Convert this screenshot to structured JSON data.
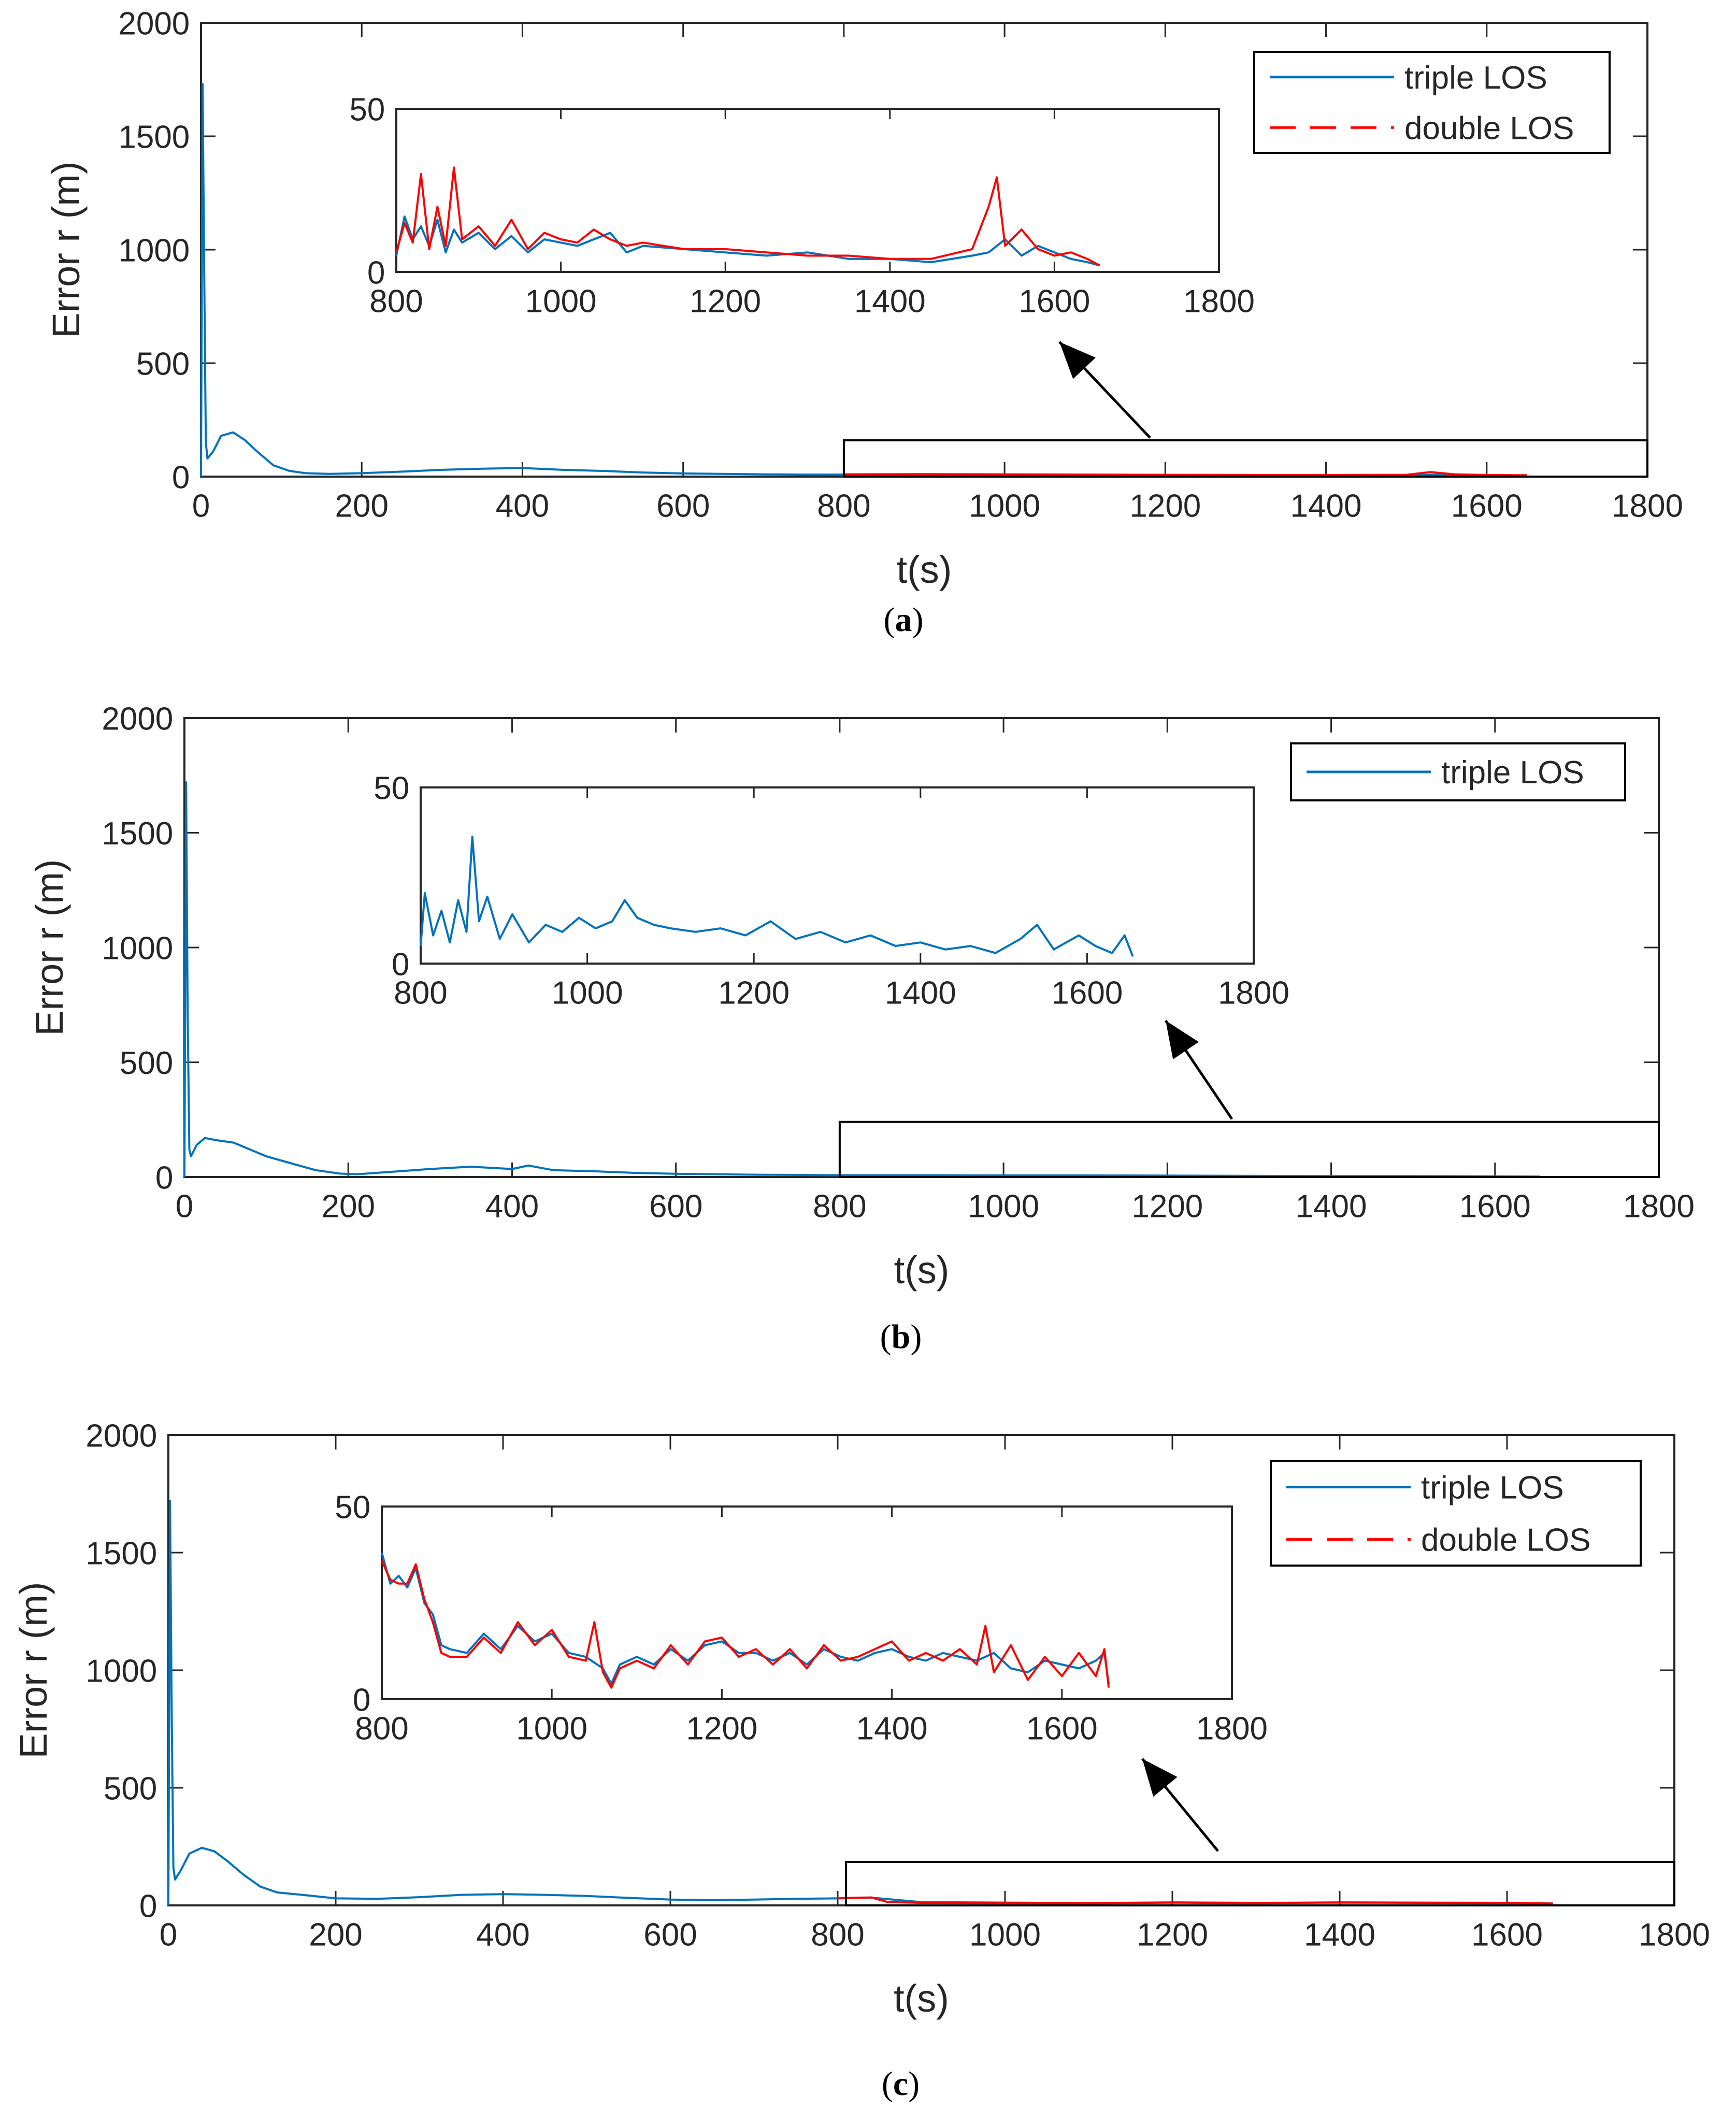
{
  "figure": {
    "colors": {
      "triple": "#0072BD",
      "double": "#FF0000",
      "axis": "#262626",
      "frame": "#000000"
    }
  },
  "chart_data": [
    {
      "panel": "a",
      "caption": "a",
      "type": "line",
      "xlabel": "t(s)",
      "ylabel": "Error r (m)",
      "xlim": [
        0,
        1800
      ],
      "ylim": [
        0,
        2000
      ],
      "xticks": [
        0,
        200,
        400,
        600,
        800,
        1000,
        1200,
        1400,
        1600,
        1800
      ],
      "yticks": [
        0,
        500,
        1000,
        1500,
        2000
      ],
      "legend": [
        "triple LOS",
        "double LOS"
      ],
      "legend_position": "top-right",
      "series": [
        {
          "name": "triple LOS",
          "style": "solid",
          "color": "#0072BD",
          "x": [
            0,
            2,
            4,
            6,
            8,
            15,
            25,
            40,
            55,
            70,
            90,
            110,
            130,
            160,
            200,
            250,
            300,
            350,
            400,
            450,
            500,
            550,
            600,
            650,
            700,
            750,
            800,
            900,
            1000,
            1100,
            1200,
            1300,
            1400,
            1500,
            1550,
            1600,
            1650
          ],
          "y": [
            0,
            1730,
            900,
            150,
            80,
            110,
            180,
            195,
            160,
            110,
            50,
            25,
            15,
            12,
            15,
            22,
            30,
            35,
            38,
            30,
            25,
            18,
            14,
            12,
            10,
            9,
            9,
            9,
            9,
            8,
            7,
            7,
            6,
            7,
            9,
            6,
            5
          ]
        },
        {
          "name": "double LOS",
          "style": "dashed",
          "color": "#FF0000",
          "x": [
            800,
            900,
            1000,
            1100,
            1200,
            1300,
            1400,
            1500,
            1530,
            1560,
            1600,
            1650
          ],
          "y": [
            10,
            11,
            10,
            9,
            8,
            7,
            7,
            8,
            20,
            10,
            7,
            6
          ]
        }
      ],
      "zoom_box": {
        "x": [
          800,
          1800
        ],
        "y": [
          0,
          160
        ]
      },
      "inset": {
        "xlim": [
          800,
          1800
        ],
        "ylim": [
          0,
          50
        ],
        "xticks": [
          800,
          1000,
          1200,
          1400,
          1600,
          1800
        ],
        "yticks": [
          0,
          50
        ],
        "series": [
          {
            "name": "triple LOS",
            "style": "solid",
            "color": "#0072BD",
            "x": [
              800,
              810,
              820,
              830,
              840,
              850,
              860,
              870,
              880,
              900,
              920,
              940,
              960,
              980,
              1000,
              1020,
              1040,
              1060,
              1080,
              1100,
              1150,
              1200,
              1250,
              1300,
              1350,
              1400,
              1450,
              1500,
              1520,
              1540,
              1560,
              1580,
              1600,
              1620,
              1640,
              1655
            ],
            "y": [
              5,
              17,
              10,
              14,
              8,
              16,
              6,
              13,
              9,
              12,
              7,
              11,
              6,
              10,
              9,
              8,
              10,
              12,
              6,
              8,
              7,
              6,
              5,
              6,
              4,
              4,
              3,
              5,
              6,
              10,
              5,
              8,
              6,
              4,
              3,
              2
            ]
          },
          {
            "name": "double LOS",
            "style": "dashed",
            "color": "#FF0000",
            "x": [
              800,
              810,
              820,
              830,
              840,
              850,
              860,
              870,
              880,
              900,
              920,
              940,
              960,
              980,
              1000,
              1020,
              1040,
              1060,
              1080,
              1100,
              1150,
              1200,
              1250,
              1300,
              1350,
              1400,
              1450,
              1500,
              1520,
              1530,
              1540,
              1560,
              1580,
              1600,
              1620,
              1640,
              1655
            ],
            "y": [
              6,
              15,
              9,
              30,
              7,
              20,
              8,
              32,
              10,
              14,
              8,
              16,
              7,
              12,
              10,
              9,
              13,
              10,
              8,
              9,
              7,
              7,
              6,
              5,
              5,
              4,
              4,
              7,
              20,
              29,
              8,
              13,
              7,
              5,
              6,
              4,
              2
            ]
          }
        ]
      }
    },
    {
      "panel": "b",
      "caption": "b",
      "type": "line",
      "xlabel": "t(s)",
      "ylabel": "Error r (m)",
      "xlim": [
        0,
        1800
      ],
      "ylim": [
        0,
        2000
      ],
      "xticks": [
        0,
        200,
        400,
        600,
        800,
        1000,
        1200,
        1400,
        1600,
        1800
      ],
      "yticks": [
        0,
        500,
        1000,
        1500,
        2000
      ],
      "legend": [
        "triple LOS"
      ],
      "legend_position": "top-right",
      "series": [
        {
          "name": "triple LOS",
          "style": "solid",
          "color": "#0072BD",
          "x": [
            0,
            2,
            4,
            6,
            8,
            15,
            25,
            40,
            60,
            80,
            100,
            130,
            160,
            190,
            210,
            250,
            300,
            350,
            400,
            420,
            450,
            500,
            550,
            600,
            650,
            700,
            750,
            800,
            900,
            1000,
            1100,
            1200,
            1300,
            1400,
            1500,
            1600,
            1655
          ],
          "y": [
            0,
            1720,
            700,
            120,
            90,
            140,
            170,
            160,
            150,
            120,
            90,
            60,
            30,
            15,
            12,
            22,
            35,
            45,
            35,
            50,
            30,
            25,
            18,
            14,
            12,
            10,
            9,
            8,
            8,
            7,
            7,
            6,
            5,
            4,
            4,
            3,
            2
          ]
        }
      ],
      "zoom_box": {
        "x": [
          800,
          1800
        ],
        "y": [
          0,
          240
        ]
      },
      "inset": {
        "xlim": [
          800,
          1800
        ],
        "ylim": [
          0,
          50
        ],
        "xticks": [
          800,
          1000,
          1200,
          1400,
          1600,
          1800
        ],
        "yticks": [
          0,
          50
        ],
        "series": [
          {
            "name": "triple LOS",
            "style": "solid",
            "color": "#0072BD",
            "x": [
              800,
              805,
              815,
              825,
              835,
              845,
              855,
              862,
              870,
              880,
              895,
              910,
              930,
              950,
              970,
              990,
              1010,
              1030,
              1045,
              1060,
              1080,
              1100,
              1130,
              1160,
              1190,
              1220,
              1250,
              1280,
              1310,
              1340,
              1370,
              1400,
              1430,
              1460,
              1490,
              1520,
              1540,
              1560,
              1590,
              1610,
              1630,
              1645,
              1655
            ],
            "y": [
              5,
              20,
              8,
              15,
              6,
              18,
              9,
              36,
              12,
              19,
              7,
              14,
              6,
              11,
              9,
              13,
              10,
              12,
              18,
              13,
              11,
              10,
              9,
              10,
              8,
              12,
              7,
              9,
              6,
              8,
              5,
              6,
              4,
              5,
              3,
              7,
              11,
              4,
              8,
              5,
              3,
              8,
              2
            ]
          }
        ]
      }
    },
    {
      "panel": "c",
      "caption": "c",
      "type": "line",
      "xlabel": "t(s)",
      "ylabel": "Error r (m)",
      "xlim": [
        0,
        1800
      ],
      "ylim": [
        0,
        2000
      ],
      "xticks": [
        0,
        200,
        400,
        600,
        800,
        1000,
        1200,
        1400,
        1600,
        1800
      ],
      "yticks": [
        0,
        500,
        1000,
        1500,
        2000
      ],
      "legend": [
        "triple LOS",
        "double LOS"
      ],
      "legend_position": "top-right",
      "series": [
        {
          "name": "triple LOS",
          "style": "solid",
          "color": "#0072BD",
          "x": [
            0,
            2,
            4,
            6,
            8,
            15,
            25,
            40,
            55,
            70,
            90,
            110,
            130,
            160,
            200,
            250,
            300,
            350,
            400,
            450,
            500,
            550,
            600,
            650,
            700,
            750,
            800,
            840,
            900,
            1000,
            1100,
            1200,
            1300,
            1400,
            1500,
            1600,
            1655
          ],
          "y": [
            0,
            1720,
            800,
            160,
            110,
            150,
            220,
            245,
            230,
            190,
            130,
            80,
            55,
            45,
            30,
            28,
            35,
            45,
            48,
            45,
            40,
            32,
            25,
            22,
            25,
            28,
            30,
            33,
            14,
            12,
            10,
            13,
            11,
            12,
            11,
            10,
            8
          ]
        },
        {
          "name": "double LOS",
          "style": "dashed",
          "color": "#FF0000",
          "x": [
            800,
            840,
            860,
            900,
            1000,
            1100,
            1200,
            1300,
            1400,
            1500,
            1600,
            1655
          ],
          "y": [
            31,
            34,
            14,
            11,
            10,
            9,
            12,
            10,
            13,
            12,
            11,
            8
          ]
        }
      ],
      "zoom_box": {
        "x": [
          810,
          1800
        ],
        "y": [
          0,
          185
        ]
      },
      "inset": {
        "xlim": [
          800,
          1800
        ],
        "ylim": [
          0,
          50
        ],
        "xticks": [
          800,
          1000,
          1200,
          1400,
          1600,
          1800
        ],
        "yticks": [
          0,
          50
        ],
        "series": [
          {
            "name": "triple LOS",
            "style": "solid",
            "color": "#0072BD",
            "x": [
              800,
              810,
              820,
              830,
              840,
              850,
              860,
              870,
              880,
              900,
              920,
              940,
              960,
              980,
              1000,
              1020,
              1040,
              1060,
              1070,
              1080,
              1100,
              1120,
              1140,
              1160,
              1180,
              1200,
              1220,
              1240,
              1260,
              1280,
              1300,
              1320,
              1340,
              1360,
              1380,
              1400,
              1420,
              1440,
              1460,
              1480,
              1500,
              1520,
              1540,
              1560,
              1580,
              1600,
              1620,
              1640,
              1650,
              1655
            ],
            "y": [
              38,
              30,
              32,
              29,
              34,
              25,
              22,
              14,
              13,
              12,
              17,
              13,
              19,
              15,
              17,
              12,
              11,
              8,
              4,
              9,
              11,
              9,
              13,
              10,
              14,
              15,
              12,
              12,
              10,
              12,
              9,
              13,
              11,
              10,
              12,
              13,
              11,
              10,
              12,
              11,
              10,
              12,
              8,
              7,
              10,
              9,
              8,
              10,
              12,
              4
            ]
          },
          {
            "name": "double LOS",
            "style": "dashed",
            "color": "#FF0000",
            "x": [
              800,
              810,
              820,
              830,
              840,
              850,
              860,
              870,
              880,
              900,
              920,
              940,
              960,
              980,
              1000,
              1020,
              1040,
              1050,
              1060,
              1070,
              1080,
              1100,
              1120,
              1140,
              1160,
              1180,
              1200,
              1220,
              1240,
              1260,
              1280,
              1300,
              1320,
              1340,
              1360,
              1380,
              1400,
              1420,
              1440,
              1460,
              1480,
              1500,
              1510,
              1520,
              1540,
              1560,
              1580,
              1600,
              1620,
              1640,
              1650,
              1655
            ],
            "y": [
              36,
              31,
              30,
              30,
              35,
              26,
              20,
              12,
              11,
              11,
              16,
              12,
              20,
              14,
              18,
              11,
              10,
              20,
              7,
              3,
              8,
              10,
              8,
              14,
              9,
              15,
              16,
              11,
              13,
              9,
              13,
              8,
              14,
              10,
              11,
              13,
              15,
              10,
              12,
              10,
              13,
              9,
              19,
              7,
              14,
              5,
              11,
              6,
              12,
              6,
              13,
              3
            ]
          }
        ]
      }
    }
  ]
}
